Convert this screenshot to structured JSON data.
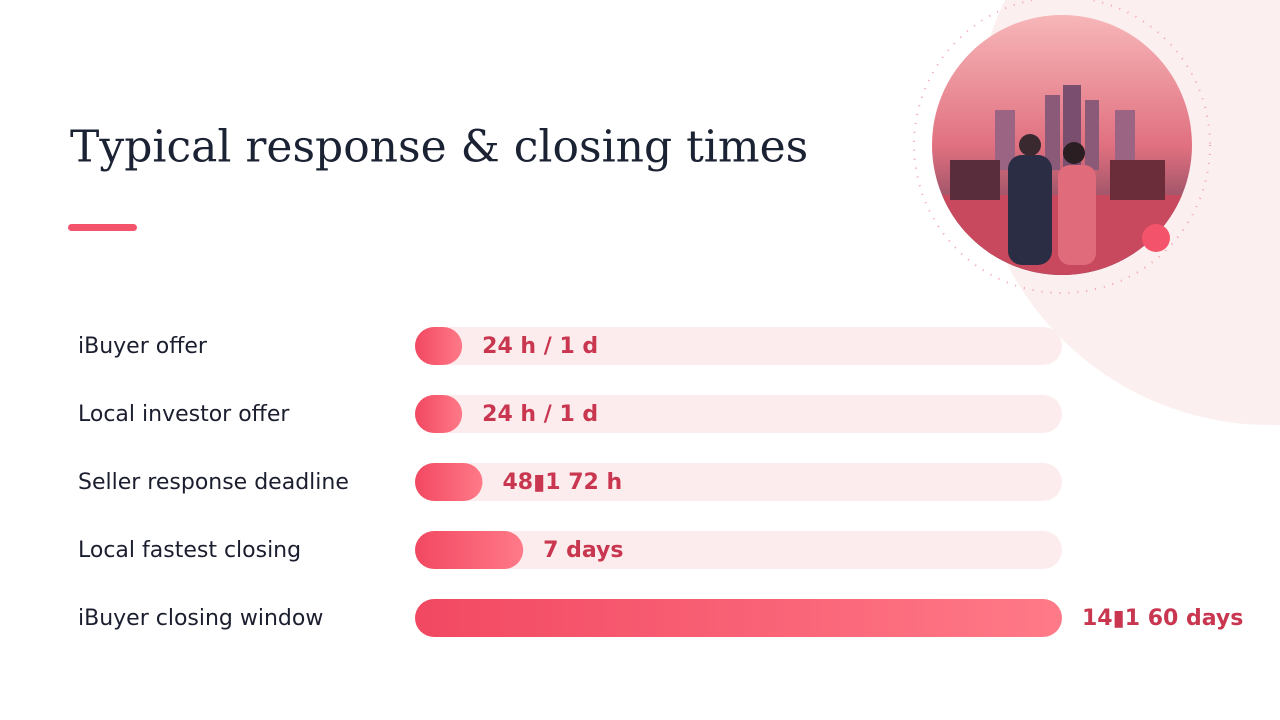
{
  "chart_data": {
    "type": "bar",
    "orientation": "horizontal",
    "title": "Typical response & closing times",
    "categories": [
      "iBuyer offer",
      "Local investor offer",
      "Seller response deadline",
      "Local fastest closing",
      "iBuyer closing window"
    ],
    "values": [
      1,
      1,
      3,
      7,
      60
    ],
    "value_labels": [
      "24 h / 1 d",
      "24 h / 1 d",
      "48▮1 72 h",
      "7 days",
      "14▮1 60 days"
    ],
    "color": "#f4546b",
    "track_color": "#fdeced"
  }
}
